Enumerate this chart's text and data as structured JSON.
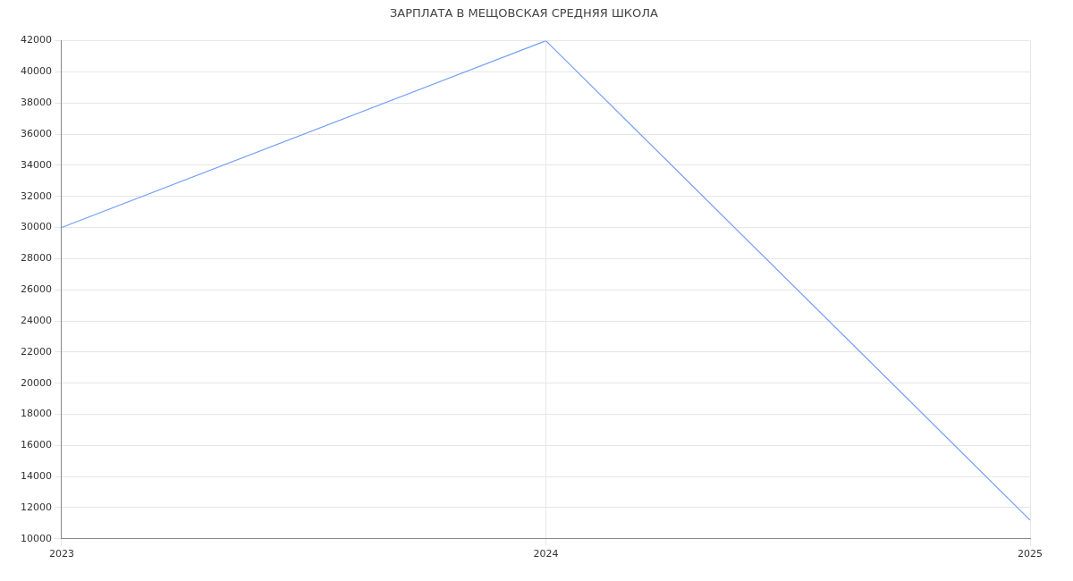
{
  "chart_data": {
    "type": "line",
    "title": "ЗАРПЛАТА В МЕЩОВСКАЯ СРЕДНЯЯ ШКОЛА",
    "categories": [
      "2023",
      "2024",
      "2025"
    ],
    "series": [
      {
        "color": "#739ef5",
        "values": [
          30000,
          42000,
          11200
        ]
      }
    ],
    "ylim": [
      10000,
      42000
    ],
    "yticks": [
      10000,
      12000,
      14000,
      16000,
      18000,
      20000,
      22000,
      24000,
      26000,
      28000,
      30000,
      32000,
      34000,
      36000,
      38000,
      40000,
      42000
    ],
    "grid": true,
    "legend": false,
    "marker": "none",
    "line_style": "solid"
  }
}
